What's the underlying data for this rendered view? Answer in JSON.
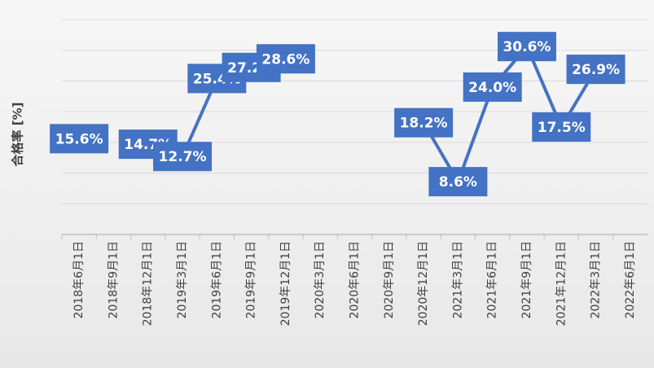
{
  "chart_data": {
    "type": "line",
    "y_label": "合格率 [%]",
    "categories": [
      "2018年6月1日",
      "2018年9月1日",
      "2018年12月1日",
      "2019年3月1日",
      "2019年6月1日",
      "2019年9月1日",
      "2019年12月1日",
      "2020年3月1日",
      "2020年6月1日",
      "2020年9月1日",
      "2020年12月1日",
      "2021年3月1日",
      "2021年6月1日",
      "2021年9月1日",
      "2021年12月1日",
      "2022年3月1日",
      "2022年6月1日"
    ],
    "series": [
      {
        "name": "合格率",
        "color": "#4472c4",
        "values": [
          15.6,
          null,
          14.7,
          12.7,
          25.4,
          27.2,
          28.6,
          null,
          null,
          null,
          18.2,
          8.6,
          24.0,
          30.6,
          17.5,
          26.9,
          null
        ],
        "value_labels": [
          "15.6%",
          null,
          "14.7%",
          "12.7%",
          "25.4%",
          "27.2%",
          "28.6%",
          null,
          null,
          null,
          "18.2%",
          "8.6%",
          "24.0%",
          "30.6%",
          "17.5%",
          "26.9%",
          null
        ]
      }
    ],
    "ylim": [
      0,
      35
    ],
    "yticks": [
      0,
      5,
      10,
      15,
      20,
      25,
      30,
      35
    ],
    "grid": true
  }
}
